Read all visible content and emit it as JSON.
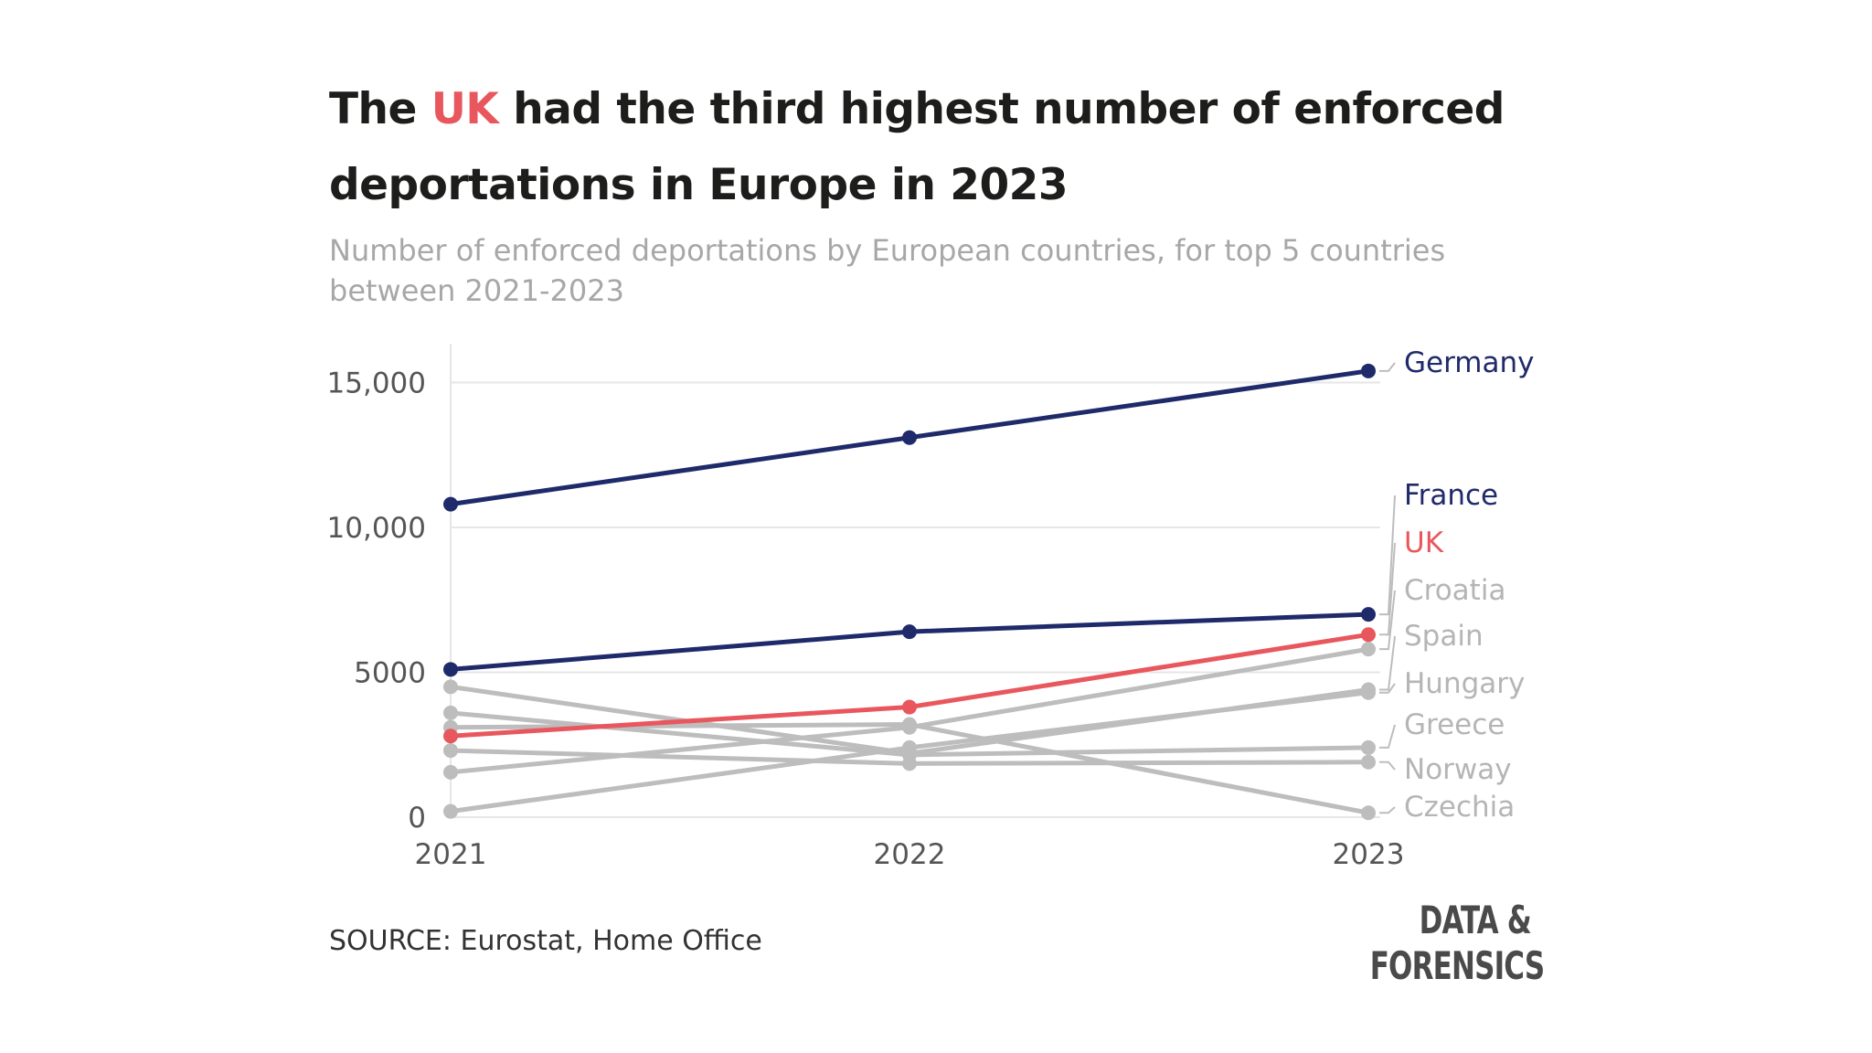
{
  "title": {
    "before": "The ",
    "highlight": "UK",
    "after": " had the third highest number of enforced deportations in Europe in 2023"
  },
  "subtitle": "Number of enforced deportations by European countries, for top 5 countries between 2021-2023",
  "source": "SOURCE: Eurostat, Home Office",
  "logo": {
    "line1": "DATA &",
    "line2": "FORENSICS"
  },
  "colors": {
    "navy": "#1f2a6b",
    "uk": "#e9575e",
    "grey": "#bdbdbd",
    "grid": "#e6e6e6",
    "axis_text": "#555555"
  },
  "chart_data": {
    "type": "line",
    "title": "The UK had the third highest number of enforced deportations in Europe in 2023",
    "xlabel": "",
    "ylabel": "",
    "x": [
      "2021",
      "2022",
      "2023"
    ],
    "ylim": [
      0,
      16000
    ],
    "yticks": [
      0,
      5000,
      10000,
      15000
    ],
    "ytick_labels": [
      "0",
      "5000",
      "10,000",
      "15,000"
    ],
    "grid": true,
    "series": [
      {
        "name": "Germany",
        "values": [
          10800,
          13100,
          15400
        ],
        "color": "navy"
      },
      {
        "name": "France",
        "values": [
          5100,
          6400,
          7000
        ],
        "color": "navy"
      },
      {
        "name": "UK",
        "values": [
          2800,
          3800,
          6300
        ],
        "color": "uk"
      },
      {
        "name": "Croatia",
        "values": [
          1550,
          3100,
          5800
        ],
        "color": "grey"
      },
      {
        "name": "Spain",
        "values": [
          4500,
          2200,
          4400
        ],
        "color": "grey"
      },
      {
        "name": "Hungary",
        "values": [
          200,
          2400,
          4300
        ],
        "color": "grey"
      },
      {
        "name": "Greece",
        "values": [
          3600,
          2150,
          2400
        ],
        "color": "grey"
      },
      {
        "name": "Norway",
        "values": [
          2300,
          1850,
          1900
        ],
        "color": "grey"
      },
      {
        "name": "Czechia",
        "values": [
          3100,
          3200,
          150
        ],
        "color": "grey"
      }
    ]
  }
}
